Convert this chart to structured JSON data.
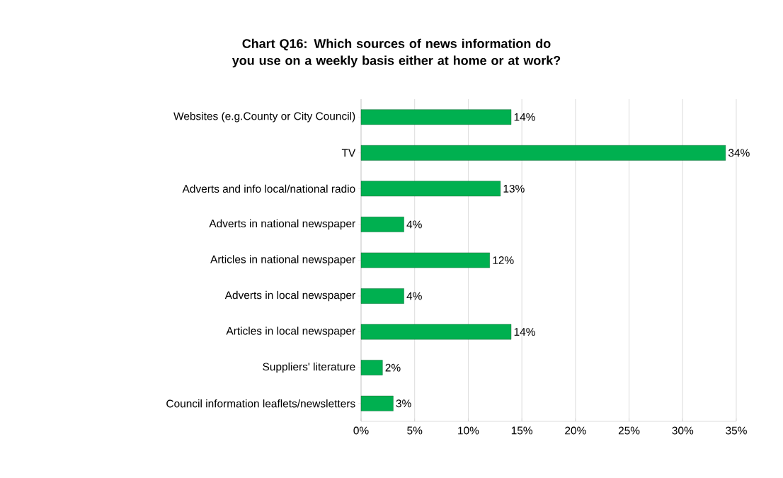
{
  "chart_data": {
    "type": "bar",
    "orientation": "horizontal",
    "title": "Chart Q16: Which sources of news information do you use on a weekly basis either at home or at work?",
    "categories": [
      "Websites (e.g.County or City Council)",
      "TV",
      "Adverts and info local/national radio",
      "Adverts in national newspaper",
      "Articles in national newspaper",
      "Adverts in local newspaper",
      "Articles in local newspaper",
      "Suppliers' literature",
      "Council information leaflets/newsletters"
    ],
    "values": [
      14,
      34,
      13,
      4,
      12,
      4,
      14,
      2,
      3
    ],
    "value_labels": [
      "14%",
      "34%",
      "13%",
      "4%",
      "12%",
      "4%",
      "14%",
      "2%",
      "3%"
    ],
    "color": "#00b050",
    "xlim": [
      0,
      35
    ],
    "xticks": [
      {
        "value": 0,
        "label": "0%"
      },
      {
        "value": 5,
        "label": "5%"
      },
      {
        "value": 10,
        "label": "10%"
      },
      {
        "value": 15,
        "label": "15%"
      },
      {
        "value": 20,
        "label": "20%"
      },
      {
        "value": 25,
        "label": "25%"
      },
      {
        "value": 30,
        "label": "30%"
      },
      {
        "value": 35,
        "label": "35%"
      }
    ],
    "grid": "x"
  }
}
